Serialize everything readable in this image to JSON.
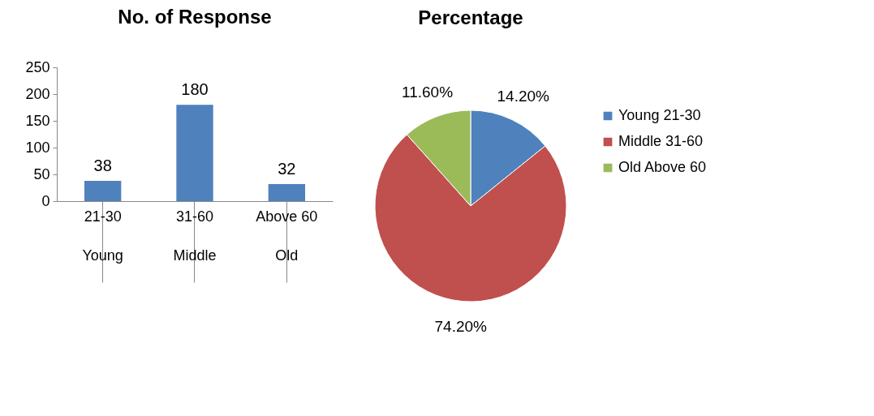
{
  "chart_data": [
    {
      "type": "bar",
      "title": "No. of Response",
      "categories": [
        "21-30\nYoung",
        "31-60\nMiddle",
        "Above 60\nOld"
      ],
      "values": [
        38,
        180,
        32
      ],
      "color": "#4f81bd",
      "ylim": [
        0,
        250
      ],
      "yticks": [
        0,
        50,
        100,
        150,
        200,
        250
      ],
      "grid": false,
      "data_labels": true
    },
    {
      "type": "pie",
      "title": "Percentage",
      "categories": [
        "Young  21-30",
        "Middle  31-60",
        "Old Above 60"
      ],
      "values": [
        14.2,
        74.2,
        11.6
      ],
      "colors": [
        "#4f81bd",
        "#c0504d",
        "#9bbb59"
      ],
      "value_labels": [
        "14.20%",
        "74.20%",
        "11.60%"
      ],
      "legend": "right"
    }
  ]
}
